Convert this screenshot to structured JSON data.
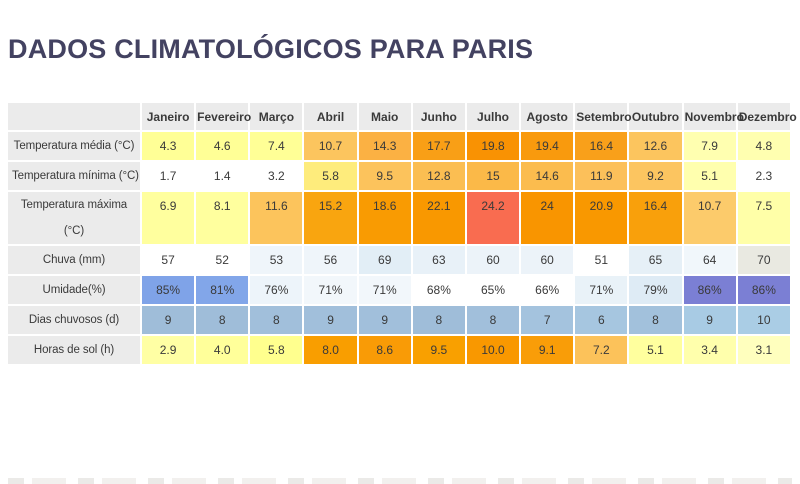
{
  "title": "DADOS CLIMATOLÓGICOS PARA PARIS",
  "theme": {
    "title_color": "#434261",
    "header_bg": "#EBEBEB",
    "text_color": "#3A3A3A",
    "gap_color": "#FFFFFF"
  },
  "chart_data": {
    "type": "table",
    "title": "DADOS CLIMATOLÓGICOS PARA PARIS",
    "columns": [
      "Janeiro",
      "Fevereiro",
      "Março",
      "Abril",
      "Maio",
      "Junho",
      "Julho",
      "Agosto",
      "Setembro",
      "Outubro",
      "Novembro",
      "Dezembro"
    ],
    "rows": [
      {
        "label": "Temperatura média (°C)",
        "values": [
          "4.3",
          "4.6",
          "7.4",
          "10.7",
          "14.3",
          "17.7",
          "19.8",
          "19.4",
          "16.4",
          "12.6",
          "7.9",
          "4.8"
        ],
        "cell_colors": [
          "#FFFF96",
          "#FFFF96",
          "#FFFF96",
          "#FCC55E",
          "#FBB143",
          "#F99F16",
          "#F99203",
          "#F99A0D",
          "#F9A01A",
          "#FCC55E",
          "#FFFFB0",
          "#FFFFB0"
        ]
      },
      {
        "label": "Temperatura mínima (°C)",
        "values": [
          "1.7",
          "1.4",
          "3.2",
          "5.8",
          "9.5",
          "12.8",
          "15",
          "14.6",
          "11.9",
          "9.2",
          "5.1",
          "2.3"
        ],
        "cell_colors": [
          "#FFFFFF",
          "#FFFFFF",
          "#FFFFFF",
          "#FEEC7C",
          "#FCC35C",
          "#FBBE52",
          "#FBB948",
          "#FBBC4E",
          "#FCC05A",
          "#FCC560",
          "#FFFFAE",
          "#FFFFFF"
        ]
      },
      {
        "label": "Temperatura máxima (°C)",
        "label_lines": [
          "Temperatura máxima",
          "(°C)"
        ],
        "values": [
          "6.9",
          "8.1",
          "11.6",
          "15.2",
          "18.6",
          "22.1",
          "24.2",
          "24",
          "20.9",
          "16.4",
          "10.7",
          "7.5"
        ],
        "cell_colors": [
          "#FFFF9E",
          "#FFFF9E",
          "#FCC45C",
          "#F9A50F",
          "#F99B02",
          "#F99800",
          "#F96C50",
          "#F99500",
          "#F99800",
          "#F9A00B",
          "#FCCB6B",
          "#FFFFA8"
        ]
      },
      {
        "label": "Chuva (mm)",
        "values": [
          "57",
          "52",
          "53",
          "56",
          "69",
          "63",
          "60",
          "60",
          "51",
          "65",
          "64",
          "70"
        ],
        "cell_colors": [
          "#FFFFFF",
          "#FFFFFF",
          "#EFF5FA",
          "#EFF5FA",
          "#E2EEF6",
          "#E8F1F8",
          "#ECF3F9",
          "#ECF3F9",
          "#FFFFFF",
          "#E6F0F7",
          "#F1F7FB",
          "#E9E9E1"
        ]
      },
      {
        "label": "Umidade(%)",
        "values": [
          "85%",
          "81%",
          "76%",
          "71%",
          "71%",
          "68%",
          "65%",
          "66%",
          "71%",
          "79%",
          "86%",
          "86%"
        ],
        "cell_colors": [
          "#7FA3E8",
          "#82A6E9",
          "#EDF4FA",
          "#F2F7FB",
          "#F2F7FB",
          "#FFFFFF",
          "#FFFFFF",
          "#FFFFFF",
          "#E9F2F8",
          "#DEEBF5",
          "#7B7FD4",
          "#7B7FD4"
        ]
      },
      {
        "label": "Dias chuvosos (d)",
        "values": [
          "9",
          "8",
          "8",
          "9",
          "9",
          "8",
          "8",
          "7",
          "6",
          "8",
          "9",
          "10"
        ],
        "cell_colors": [
          "#9FBDD9",
          "#9FBDD9",
          "#A1BFDB",
          "#A1BFDB",
          "#A1BFDB",
          "#9FBDD9",
          "#A1BFDB",
          "#A4C3DE",
          "#A6C6E0",
          "#A2C1DC",
          "#A8CBE4",
          "#AACDE5"
        ]
      },
      {
        "label": "Horas de sol (h)",
        "values": [
          "2.9",
          "4.0",
          "5.8",
          "8.0",
          "8.6",
          "9.5",
          "10.0",
          "9.1",
          "7.2",
          "5.1",
          "3.4",
          "3.1"
        ],
        "cell_colors": [
          "#FFFFA4",
          "#FFFF9A",
          "#FFFF8E",
          "#F99E00",
          "#F99B06",
          "#F9A000",
          "#F99800",
          "#F99D08",
          "#FCC25A",
          "#FFFF9E",
          "#FFFFAC",
          "#FFFFBE"
        ]
      }
    ]
  }
}
